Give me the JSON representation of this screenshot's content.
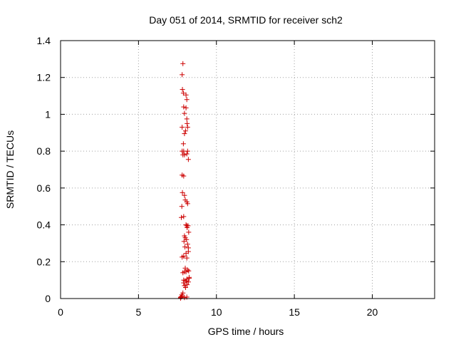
{
  "chart_data": {
    "type": "scatter",
    "title": "Day 051 of 2014, SRMTID for receiver sch2",
    "xlabel": "GPS time / hours",
    "ylabel": "SRMTID / TECUs",
    "xlim": [
      0,
      24
    ],
    "ylim": [
      0,
      1.4
    ],
    "xticks": [
      "0",
      "5",
      "10",
      "15",
      "20"
    ],
    "yticks": [
      "0",
      "0.2",
      "0.4",
      "0.6",
      "0.8",
      "1",
      "1.2",
      "1.4"
    ],
    "grid": true,
    "marker": "+",
    "color": "#cc0000",
    "series": [
      {
        "x": [
          7.85,
          7.8,
          7.82,
          8.05,
          7.88,
          8.1,
          7.9,
          8.05,
          7.95,
          8.1,
          7.8,
          8.12,
          8.02,
          7.95,
          8.15,
          7.8,
          8.1,
          7.85,
          7.9,
          7.88,
          8.15,
          7.95,
          8.2,
          7.8,
          7.9,
          7.82,
          7.95,
          7.78,
          8.0,
          8.1,
          8.15,
          7.9,
          7.75,
          8.05,
          8.18,
          7.95,
          8.1,
          8.12,
          8.22,
          8.0,
          7.92,
          8.08,
          8.15,
          8.2,
          7.98,
          8.05,
          7.9,
          8.2,
          8.1,
          7.8,
          8.0,
          8.22,
          8.15,
          7.85,
          7.95,
          8.05,
          8.25,
          8.0,
          7.9,
          8.1,
          8.2,
          8.12,
          8.02,
          7.95,
          7.9,
          8.08,
          8.25,
          7.7,
          7.72,
          7.75,
          7.8,
          7.95,
          8.1,
          7.7,
          7.78,
          7.85
        ],
        "y": [
          1.275,
          1.215,
          1.135,
          1.105,
          1.115,
          1.08,
          1.04,
          1.035,
          1.005,
          0.975,
          0.93,
          0.95,
          0.91,
          0.895,
          0.93,
          0.8,
          0.785,
          0.78,
          0.8,
          0.84,
          0.8,
          0.78,
          0.755,
          0.67,
          0.665,
          0.575,
          0.56,
          0.5,
          0.535,
          0.525,
          0.515,
          0.445,
          0.44,
          0.4,
          0.395,
          0.34,
          0.395,
          0.385,
          0.36,
          0.33,
          0.31,
          0.32,
          0.295,
          0.275,
          0.28,
          0.245,
          0.23,
          0.255,
          0.22,
          0.225,
          0.165,
          0.15,
          0.155,
          0.14,
          0.145,
          0.145,
          0.115,
          0.095,
          0.1,
          0.105,
          0.09,
          0.075,
          0.06,
          0.07,
          0.085,
          0.095,
          0.11,
          0.005,
          0.008,
          0.01,
          0.012,
          0.005,
          0.008,
          0.002,
          0.02,
          0.03
        ]
      }
    ]
  }
}
